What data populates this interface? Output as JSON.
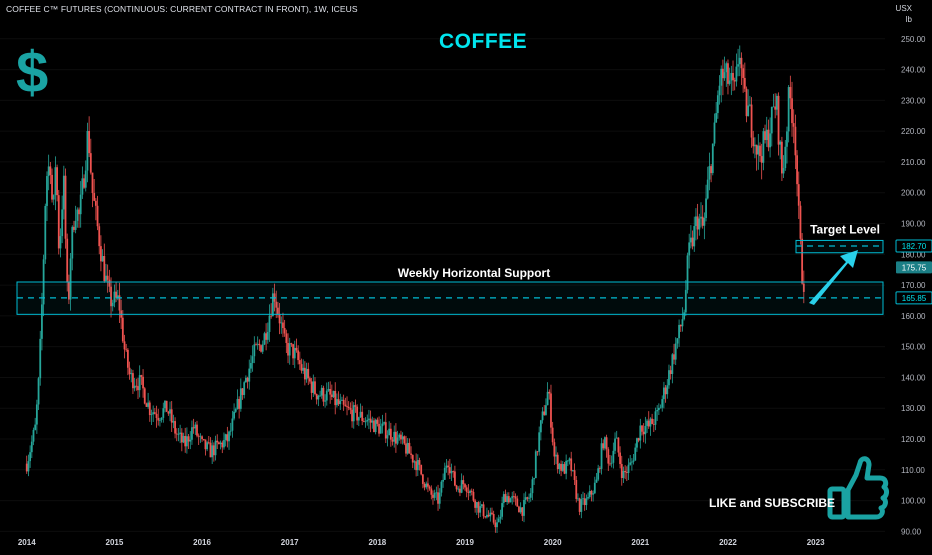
{
  "header": {
    "symbol_line": "COFFEE C™ FUTURES (CONTINUOUS: CURRENT CONTRACT IN FRONT), 1W, ICEUS",
    "currency": "USX",
    "unit": "lb"
  },
  "overlay": {
    "title": "COFFEE",
    "dollar_sign": "$",
    "support_label": "Weekly Horizontal Support",
    "target_label": "Target Level",
    "cta": "LIKE and SUBSCRIBE",
    "icons": [
      "dollar-icon",
      "thumbs-up-icon",
      "arrow-up-right-icon"
    ]
  },
  "chart_data": {
    "type": "candlestick",
    "timeframe": "1W",
    "x_tick_labels": [
      "2014",
      "2015",
      "2016",
      "2017",
      "2018",
      "2019",
      "2020",
      "2021",
      "2022",
      "2023"
    ],
    "y_tick_labels": [
      "90.00",
      "100.00",
      "110.00",
      "120.00",
      "130.00",
      "140.00",
      "150.00",
      "160.00",
      "170.00",
      "180.00",
      "190.00",
      "200.00",
      "210.00",
      "220.00",
      "230.00",
      "240.00",
      "250.00"
    ],
    "ylim": [
      88.5,
      260
    ],
    "xlim": [
      2013.98,
      2023.05
    ],
    "price_tags": [
      {
        "label": "182.70",
        "value": 182.7,
        "style": "outline"
      },
      {
        "label": "175.75",
        "value": 175.75,
        "style": "filled"
      },
      {
        "label": "165.85",
        "value": 165.85,
        "style": "outline"
      }
    ],
    "support_zone": {
      "label": "Weekly Horizontal Support",
      "from": 160.5,
      "to": 171.0,
      "level": 165.85
    },
    "target_zone": {
      "label": "Target Level",
      "from": 180.5,
      "to": 184.5,
      "level": 182.7
    },
    "colors": {
      "up": "#26a69a",
      "down": "#ef5350",
      "zone": "#00bcd4",
      "accent": "#00e5ee",
      "background": "#000000"
    },
    "path": [
      [
        2014.0,
        112
      ],
      [
        2014.05,
        118
      ],
      [
        2014.1,
        124
      ],
      [
        2014.14,
        140
      ],
      [
        2014.18,
        168
      ],
      [
        2014.22,
        205
      ],
      [
        2014.27,
        210
      ],
      [
        2014.3,
        190
      ],
      [
        2014.33,
        212
      ],
      [
        2014.37,
        180
      ],
      [
        2014.42,
        205
      ],
      [
        2014.47,
        160
      ],
      [
        2014.5,
        180
      ],
      [
        2014.55,
        195
      ],
      [
        2014.6,
        192
      ],
      [
        2014.65,
        205
      ],
      [
        2014.7,
        220
      ],
      [
        2014.75,
        200
      ],
      [
        2014.8,
        190
      ],
      [
        2014.88,
        175
      ],
      [
        2014.95,
        165
      ],
      [
        2015.05,
        165
      ],
      [
        2015.12,
        148
      ],
      [
        2015.18,
        140
      ],
      [
        2015.3,
        138
      ],
      [
        2015.4,
        130
      ],
      [
        2015.5,
        128
      ],
      [
        2015.6,
        130
      ],
      [
        2015.7,
        122
      ],
      [
        2015.8,
        118
      ],
      [
        2015.9,
        124
      ],
      [
        2016.0,
        118
      ],
      [
        2016.1,
        116
      ],
      [
        2016.2,
        118
      ],
      [
        2016.3,
        120
      ],
      [
        2016.4,
        130
      ],
      [
        2016.5,
        140
      ],
      [
        2016.6,
        148
      ],
      [
        2016.7,
        152
      ],
      [
        2016.75,
        158
      ],
      [
        2016.82,
        168
      ],
      [
        2016.88,
        160
      ],
      [
        2016.95,
        150
      ],
      [
        2017.05,
        148
      ],
      [
        2017.15,
        142
      ],
      [
        2017.3,
        135
      ],
      [
        2017.45,
        134
      ],
      [
        2017.6,
        130
      ],
      [
        2017.75,
        128
      ],
      [
        2017.9,
        126
      ],
      [
        2018.0,
        124
      ],
      [
        2018.15,
        122
      ],
      [
        2018.3,
        118
      ],
      [
        2018.45,
        112
      ],
      [
        2018.6,
        102
      ],
      [
        2018.7,
        100
      ],
      [
        2018.8,
        114
      ],
      [
        2018.9,
        104
      ],
      [
        2019.0,
        106
      ],
      [
        2019.15,
        98
      ],
      [
        2019.3,
        94
      ],
      [
        2019.38,
        92
      ],
      [
        2019.45,
        102
      ],
      [
        2019.55,
        100
      ],
      [
        2019.65,
        97
      ],
      [
        2019.75,
        102
      ],
      [
        2019.85,
        122
      ],
      [
        2019.95,
        136
      ],
      [
        2020.02,
        114
      ],
      [
        2020.12,
        110
      ],
      [
        2020.2,
        112
      ],
      [
        2020.3,
        98
      ],
      [
        2020.4,
        100
      ],
      [
        2020.5,
        106
      ],
      [
        2020.58,
        120
      ],
      [
        2020.65,
        112
      ],
      [
        2020.72,
        120
      ],
      [
        2020.8,
        108
      ],
      [
        2020.9,
        112
      ],
      [
        2021.0,
        124
      ],
      [
        2021.1,
        124
      ],
      [
        2021.2,
        128
      ],
      [
        2021.3,
        138
      ],
      [
        2021.4,
        150
      ],
      [
        2021.45,
        155
      ],
      [
        2021.5,
        162
      ],
      [
        2021.55,
        180
      ],
      [
        2021.6,
        185
      ],
      [
        2021.65,
        192
      ],
      [
        2021.72,
        188
      ],
      [
        2021.78,
        205
      ],
      [
        2021.85,
        220
      ],
      [
        2021.9,
        236
      ],
      [
        2021.95,
        238
      ],
      [
        2022.02,
        236
      ],
      [
        2022.08,
        232
      ],
      [
        2022.13,
        248
      ],
      [
        2022.18,
        230
      ],
      [
        2022.25,
        225
      ],
      [
        2022.35,
        212
      ],
      [
        2022.45,
        218
      ],
      [
        2022.55,
        230
      ],
      [
        2022.62,
        205
      ],
      [
        2022.7,
        232
      ],
      [
        2022.76,
        222
      ],
      [
        2022.8,
        196
      ],
      [
        2022.84,
        175
      ],
      [
        2022.86,
        170
      ],
      [
        2022.88,
        175.75
      ]
    ]
  }
}
